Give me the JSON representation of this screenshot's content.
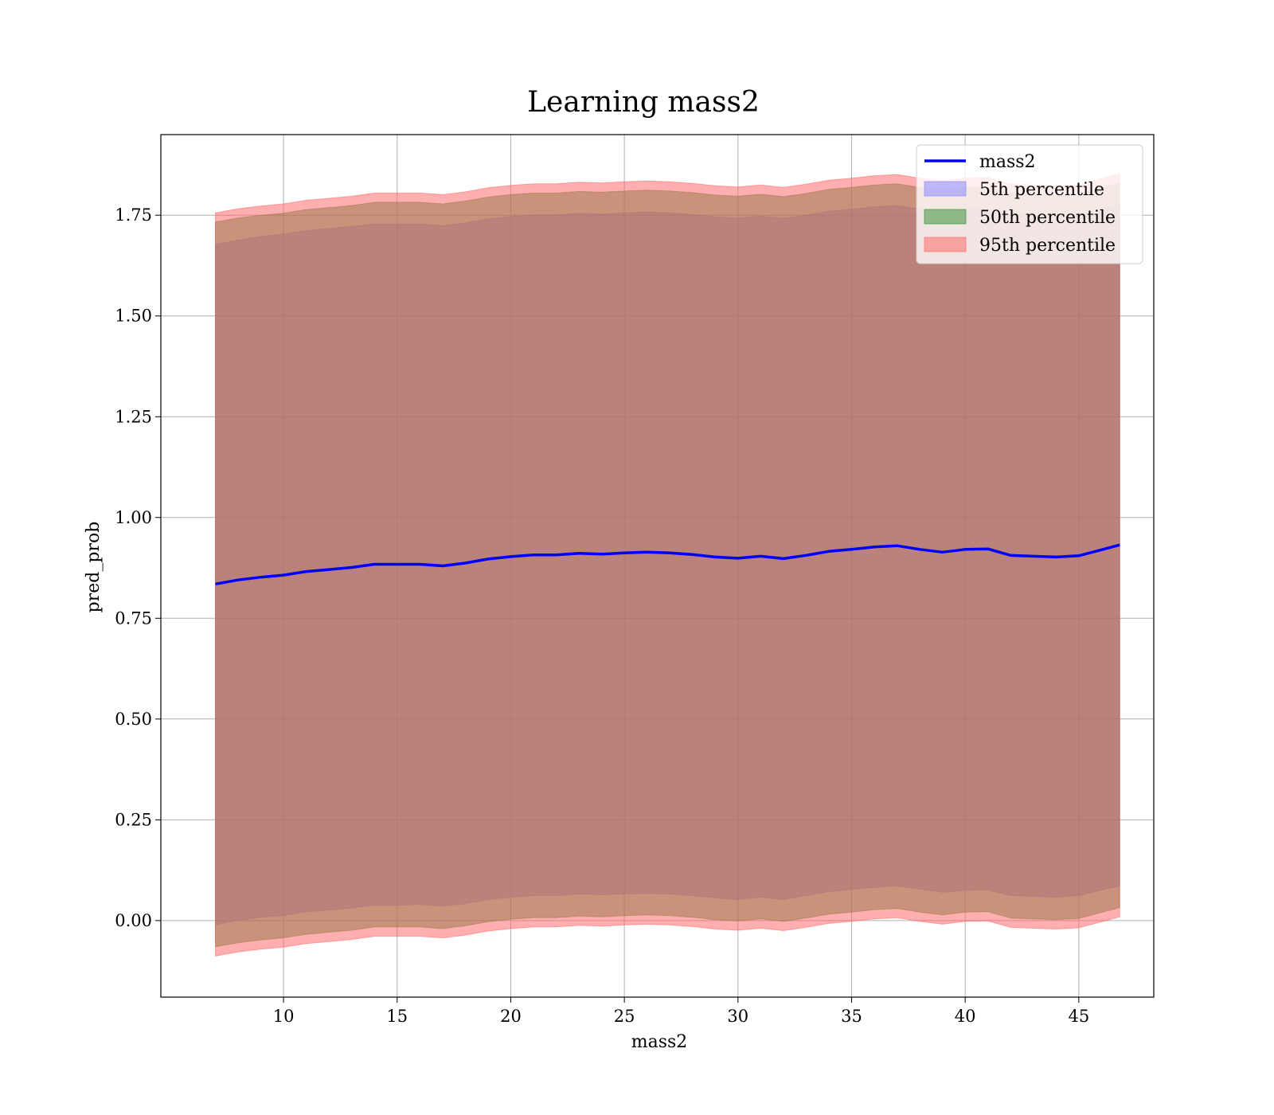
{
  "chart_data": {
    "type": "line",
    "title": "Learning mass2",
    "xlabel": "mass2",
    "ylabel": "pred_prob",
    "xlim": [
      4.6,
      48.3
    ],
    "ylim": [
      -0.19,
      1.95
    ],
    "xticks": [
      10,
      15,
      20,
      25,
      30,
      35,
      40,
      45
    ],
    "yticks": [
      0.0,
      0.25,
      0.5,
      0.75,
      1.0,
      1.25,
      1.5,
      1.75
    ],
    "ytick_labels": [
      "0.00",
      "0.25",
      "0.50",
      "0.75",
      "1.00",
      "1.25",
      "1.50",
      "1.75"
    ],
    "grid": true,
    "legend_position": "top-right",
    "x": [
      7.0,
      8.0,
      9.0,
      10.0,
      11.0,
      12.0,
      13.0,
      14.0,
      15.0,
      16.0,
      17.0,
      18.0,
      19.0,
      20.0,
      21.0,
      22.0,
      23.0,
      24.0,
      25.0,
      26.0,
      27.0,
      28.0,
      29.0,
      30.0,
      31.0,
      32.0,
      33.0,
      34.0,
      35.0,
      36.0,
      37.0,
      38.0,
      39.0,
      40.0,
      41.0,
      42.0,
      43.0,
      44.0,
      45.0,
      46.0,
      46.8
    ],
    "series": [
      {
        "name": "mass2",
        "kind": "line",
        "color": "#0000ff",
        "values": [
          0.835,
          0.845,
          0.852,
          0.857,
          0.866,
          0.871,
          0.876,
          0.884,
          0.884,
          0.884,
          0.88,
          0.887,
          0.897,
          0.903,
          0.907,
          0.907,
          0.911,
          0.909,
          0.912,
          0.914,
          0.912,
          0.908,
          0.902,
          0.899,
          0.904,
          0.898,
          0.906,
          0.916,
          0.921,
          0.927,
          0.93,
          0.921,
          0.914,
          0.921,
          0.922,
          0.906,
          0.904,
          0.902,
          0.905,
          0.92,
          0.932
        ]
      },
      {
        "name": "5th percentile",
        "kind": "band",
        "color": "#8080ff",
        "lower": [
          -0.01,
          0.0,
          0.008,
          0.012,
          0.022,
          0.026,
          0.031,
          0.038,
          0.038,
          0.04,
          0.036,
          0.042,
          0.052,
          0.058,
          0.062,
          0.062,
          0.066,
          0.064,
          0.066,
          0.067,
          0.066,
          0.062,
          0.056,
          0.052,
          0.058,
          0.052,
          0.062,
          0.072,
          0.077,
          0.082,
          0.086,
          0.078,
          0.07,
          0.075,
          0.076,
          0.062,
          0.06,
          0.058,
          0.062,
          0.076,
          0.086
        ],
        "upper": [
          1.678,
          1.688,
          1.697,
          1.703,
          1.712,
          1.717,
          1.722,
          1.728,
          1.728,
          1.728,
          1.724,
          1.731,
          1.741,
          1.747,
          1.751,
          1.751,
          1.755,
          1.753,
          1.756,
          1.758,
          1.756,
          1.752,
          1.746,
          1.743,
          1.748,
          1.742,
          1.75,
          1.76,
          1.765,
          1.771,
          1.774,
          1.765,
          1.758,
          1.765,
          1.766,
          1.75,
          1.748,
          1.746,
          1.749,
          1.764,
          1.776
        ]
      },
      {
        "name": "50th percentile",
        "kind": "band",
        "color": "#2e8b2e",
        "lower": [
          -0.065,
          -0.055,
          -0.048,
          -0.043,
          -0.034,
          -0.029,
          -0.024,
          -0.016,
          -0.016,
          -0.016,
          -0.02,
          -0.013,
          -0.003,
          0.003,
          0.007,
          0.007,
          0.011,
          0.009,
          0.012,
          0.014,
          0.012,
          0.008,
          0.002,
          -0.001,
          0.004,
          -0.002,
          0.006,
          0.016,
          0.021,
          0.027,
          0.03,
          0.021,
          0.014,
          0.021,
          0.022,
          0.006,
          0.004,
          0.002,
          0.005,
          0.02,
          0.032
        ],
        "upper": [
          1.733,
          1.743,
          1.75,
          1.755,
          1.764,
          1.769,
          1.774,
          1.782,
          1.782,
          1.782,
          1.778,
          1.785,
          1.795,
          1.801,
          1.805,
          1.805,
          1.809,
          1.807,
          1.81,
          1.812,
          1.81,
          1.806,
          1.8,
          1.797,
          1.802,
          1.796,
          1.804,
          1.814,
          1.819,
          1.825,
          1.828,
          1.819,
          1.812,
          1.819,
          1.82,
          1.804,
          1.802,
          1.8,
          1.803,
          1.818,
          1.83
        ]
      },
      {
        "name": "95th percentile",
        "kind": "band",
        "color": "#ff6060",
        "lower": [
          -0.088,
          -0.078,
          -0.071,
          -0.066,
          -0.057,
          -0.052,
          -0.047,
          -0.039,
          -0.039,
          -0.039,
          -0.043,
          -0.036,
          -0.026,
          -0.02,
          -0.016,
          -0.016,
          -0.012,
          -0.014,
          -0.011,
          -0.009,
          -0.011,
          -0.015,
          -0.021,
          -0.024,
          -0.019,
          -0.025,
          -0.017,
          -0.007,
          -0.002,
          0.004,
          0.007,
          -0.002,
          -0.009,
          -0.002,
          -0.001,
          -0.017,
          -0.019,
          -0.021,
          -0.018,
          -0.003,
          0.009
        ],
        "upper": [
          1.756,
          1.766,
          1.773,
          1.778,
          1.787,
          1.792,
          1.797,
          1.805,
          1.805,
          1.805,
          1.801,
          1.808,
          1.818,
          1.824,
          1.828,
          1.828,
          1.832,
          1.83,
          1.833,
          1.835,
          1.833,
          1.829,
          1.823,
          1.82,
          1.825,
          1.819,
          1.827,
          1.837,
          1.842,
          1.848,
          1.851,
          1.842,
          1.835,
          1.842,
          1.843,
          1.827,
          1.825,
          1.823,
          1.826,
          1.841,
          1.853
        ]
      }
    ]
  }
}
